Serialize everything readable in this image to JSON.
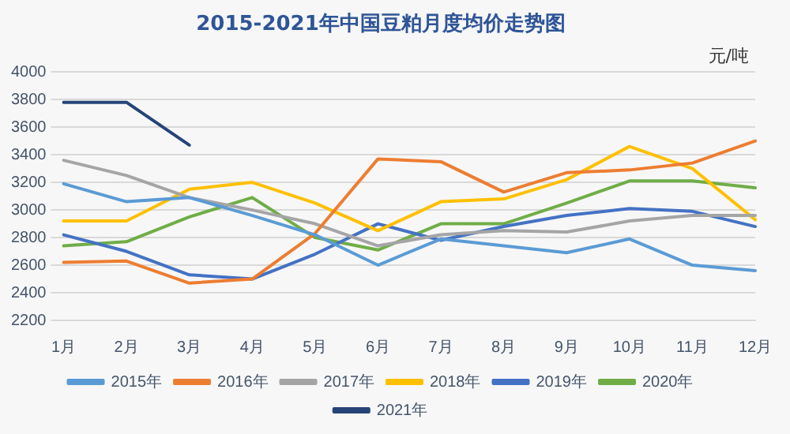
{
  "chart_data": {
    "type": "line",
    "title": "2015-2021年中国豆粕月度均价走势图",
    "ylabel": "元/吨",
    "categories": [
      "1月",
      "2月",
      "3月",
      "4月",
      "5月",
      "6月",
      "7月",
      "8月",
      "9月",
      "10月",
      "11月",
      "12月"
    ],
    "series": [
      {
        "name": "2015年",
        "color": "#5b9bd5",
        "values": [
          3190,
          3060,
          3090,
          2960,
          2820,
          2600,
          2790,
          2740,
          2690,
          2790,
          2600,
          2560
        ]
      },
      {
        "name": "2016年",
        "color": "#ed7d31",
        "values": [
          2620,
          2630,
          2470,
          2500,
          2830,
          3370,
          3350,
          3130,
          3270,
          3290,
          3340,
          3500
        ]
      },
      {
        "name": "2017年",
        "color": "#a5a5a5",
        "values": [
          3360,
          3250,
          3090,
          3000,
          2900,
          2740,
          2820,
          2850,
          2840,
          2920,
          2960,
          2960
        ]
      },
      {
        "name": "2018年",
        "color": "#ffc000",
        "values": [
          2920,
          2920,
          3150,
          3200,
          3050,
          2850,
          3060,
          3080,
          3220,
          3460,
          3300,
          2930
        ]
      },
      {
        "name": "2019年",
        "color": "#4472c4",
        "values": [
          2820,
          2700,
          2530,
          2500,
          2680,
          2900,
          2780,
          2880,
          2960,
          3010,
          2990,
          2880
        ]
      },
      {
        "name": "2020年",
        "color": "#70ad47",
        "values": [
          2740,
          2770,
          2950,
          3090,
          2800,
          2710,
          2900,
          2900,
          3050,
          3210,
          3210,
          3160
        ]
      },
      {
        "name": "2021年",
        "color": "#264478",
        "values": [
          3780,
          3780,
          3470,
          null,
          null,
          null,
          null,
          null,
          null,
          null,
          null,
          null
        ]
      }
    ],
    "ylim": [
      2200,
      4000
    ],
    "yticks": [
      2200,
      2400,
      2600,
      2800,
      3000,
      3200,
      3400,
      3600,
      3800,
      4000
    ],
    "grid": "y",
    "legend": "bottom",
    "marker": "none",
    "line_style": "solid"
  }
}
